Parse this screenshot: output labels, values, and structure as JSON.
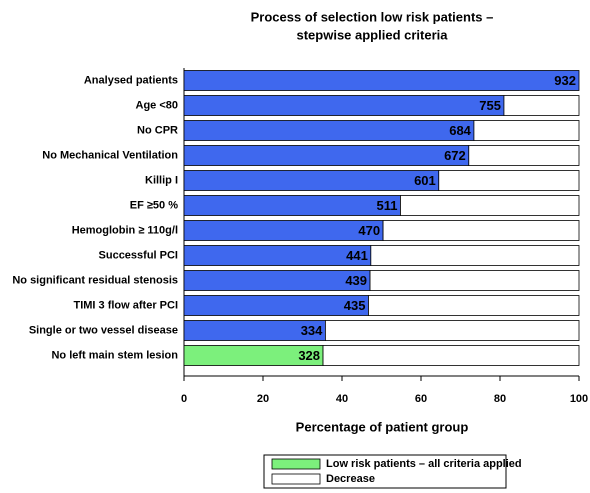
{
  "chart_data": {
    "type": "bar",
    "orientation": "horizontal",
    "title": [
      "Process of selection  low risk patients –",
      "stepwise applied criteria"
    ],
    "categories": [
      "Analysed patients",
      "Age <80",
      "No CPR",
      "No Mechanical Ventilation",
      "Killip I",
      "EF ≥50 %",
      "Hemoglobin ≥ 110g/l",
      "Successful PCI",
      "No significant residual stenosis",
      "TIMI 3 flow after PCI",
      "Single or two vessel disease",
      "No left main stem lesion"
    ],
    "values": [
      100,
      81.0,
      73.4,
      72.1,
      64.5,
      54.8,
      50.4,
      47.3,
      47.1,
      46.7,
      35.8,
      35.2
    ],
    "value_labels": [
      "932",
      "755",
      "684",
      "672",
      "601",
      "511",
      "470",
      "441",
      "439",
      "435",
      "334",
      "328"
    ],
    "colors": [
      "#3f68ee",
      "#3f68ee",
      "#3f68ee",
      "#3f68ee",
      "#3f68ee",
      "#3f68ee",
      "#3f68ee",
      "#3f68ee",
      "#3f68ee",
      "#3f68ee",
      "#3f68ee",
      "#7cf07c"
    ],
    "decrease": [
      0,
      19.0,
      26.6,
      27.9,
      35.5,
      45.2,
      49.6,
      52.7,
      52.9,
      53.3,
      64.2,
      64.8
    ],
    "decrease_color": "#ffffff",
    "xlim": [
      0,
      100
    ],
    "xticks": [
      0,
      20,
      40,
      60,
      80,
      100
    ],
    "xlabel": "Percentage of patient group",
    "legend": [
      {
        "name": "Low risk patients – all criteria applied",
        "color": "#7cf07c"
      },
      {
        "name": "Decrease",
        "color": "#ffffff"
      }
    ]
  }
}
